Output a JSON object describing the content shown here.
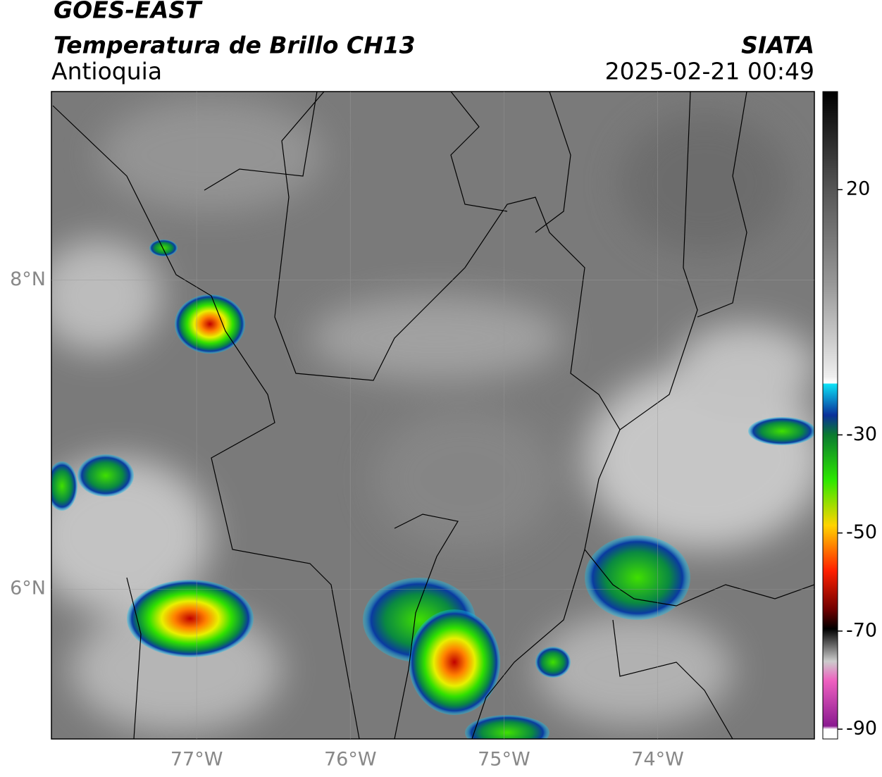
{
  "chart_data": {
    "type": "map",
    "title": "GOES-EAST",
    "subtitle": "Temperatura de Brillo CH13",
    "region": "Antioquia",
    "source": "SIATA",
    "datetime": "2025-02-21 00:49",
    "xlim": [
      -77.945,
      -72.98
    ],
    "ylim": [
      5.03,
      9.22
    ],
    "xticks": [
      {
        "value": -77,
        "label": "77°W"
      },
      {
        "value": -76,
        "label": "76°W"
      },
      {
        "value": -75,
        "label": "75°W"
      },
      {
        "value": -74,
        "label": "74°W"
      }
    ],
    "yticks": [
      {
        "value": 8,
        "label": "8°N"
      },
      {
        "value": 6,
        "label": "6°N"
      }
    ],
    "grid": true,
    "clim": [
      -92,
      40
    ],
    "cticks": [
      20,
      -30,
      -50,
      -70,
      -90
    ]
  }
}
